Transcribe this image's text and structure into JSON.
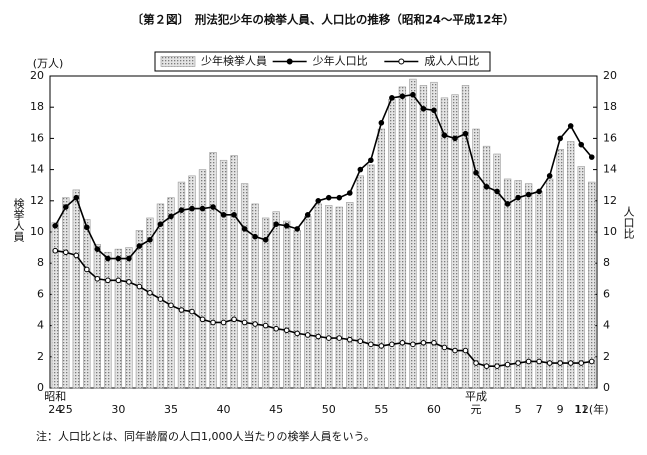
{
  "chart_data": {
    "type": "combo",
    "title": "〔第２図〕　刑法犯少年の検挙人員、人口比の推移（昭和24～平成12年）",
    "y_unit_label": "(万人)",
    "y_axis_label": "検挙人員",
    "y2_axis_label": "人口比",
    "note": "注：人口比とは、同年齢層の人口1,000人当たりの検挙人員をいう。",
    "categories": [
      "昭和24",
      "25",
      null,
      null,
      null,
      null,
      "30",
      null,
      null,
      null,
      null,
      "35",
      null,
      null,
      null,
      null,
      "40",
      null,
      null,
      null,
      null,
      "45",
      null,
      null,
      null,
      null,
      "50",
      null,
      null,
      null,
      null,
      "55",
      null,
      null,
      null,
      null,
      "60",
      null,
      null,
      null,
      "平成元",
      null,
      null,
      null,
      "5",
      null,
      "7",
      null,
      "9",
      null,
      "11",
      "12(年)"
    ],
    "ylim": [
      0,
      20
    ],
    "yticks": [
      0,
      2,
      4,
      6,
      8,
      10,
      12,
      14,
      16,
      18,
      20
    ],
    "y2lim": [
      0,
      20
    ],
    "y2ticks": [
      0,
      2,
      4,
      6,
      8,
      10,
      12,
      14,
      16,
      18,
      20
    ],
    "legend": "top",
    "series": [
      {
        "name": "少年検挙人員",
        "type": "bar",
        "axis": "y",
        "color": "#9a9a9a",
        "values": [
          10.6,
          12.2,
          12.7,
          10.8,
          9.2,
          8.7,
          8.9,
          9.0,
          10.1,
          10.9,
          11.8,
          12.2,
          13.2,
          13.6,
          14.0,
          15.1,
          14.6,
          14.9,
          13.1,
          11.8,
          10.9,
          11.3,
          10.7,
          10.1,
          11.0,
          11.8,
          11.7,
          11.6,
          11.9,
          13.6,
          14.3,
          16.6,
          18.5,
          19.3,
          19.8,
          19.4,
          19.6,
          18.6,
          18.8,
          19.4,
          16.6,
          15.5,
          15.0,
          13.4,
          13.3,
          13.1,
          12.6,
          13.4,
          15.3,
          15.8,
          14.2,
          13.2
        ]
      },
      {
        "name": "少年人口比",
        "type": "line",
        "axis": "y2",
        "color": "#000000",
        "marker": "filled",
        "values": [
          10.4,
          11.6,
          12.2,
          10.3,
          8.9,
          8.3,
          8.3,
          8.3,
          9.1,
          9.5,
          10.5,
          11.0,
          11.4,
          11.5,
          11.5,
          11.6,
          11.1,
          11.1,
          10.2,
          9.7,
          9.5,
          10.5,
          10.4,
          10.2,
          11.1,
          12.0,
          12.2,
          12.2,
          12.5,
          14.0,
          14.6,
          17.0,
          18.6,
          18.7,
          18.8,
          17.9,
          17.8,
          16.2,
          16.0,
          16.3,
          13.8,
          12.9,
          12.6,
          11.8,
          12.2,
          12.4,
          12.6,
          13.6,
          16.0,
          16.8,
          15.6,
          14.8
        ]
      },
      {
        "name": "成人人口比",
        "type": "line",
        "axis": "y2",
        "color": "#000000",
        "marker": "open",
        "values": [
          8.8,
          8.7,
          8.5,
          7.6,
          7.0,
          6.9,
          6.9,
          6.8,
          6.5,
          6.1,
          5.7,
          5.3,
          5.0,
          4.9,
          4.4,
          4.2,
          4.2,
          4.4,
          4.2,
          4.1,
          4.0,
          3.8,
          3.7,
          3.5,
          3.4,
          3.3,
          3.2,
          3.2,
          3.1,
          3.0,
          2.8,
          2.7,
          2.8,
          2.9,
          2.8,
          2.9,
          2.9,
          2.6,
          2.4,
          2.4,
          1.6,
          1.4,
          1.4,
          1.5,
          1.6,
          1.7,
          1.7,
          1.6,
          1.6,
          1.6,
          1.6,
          1.7
        ]
      }
    ]
  }
}
